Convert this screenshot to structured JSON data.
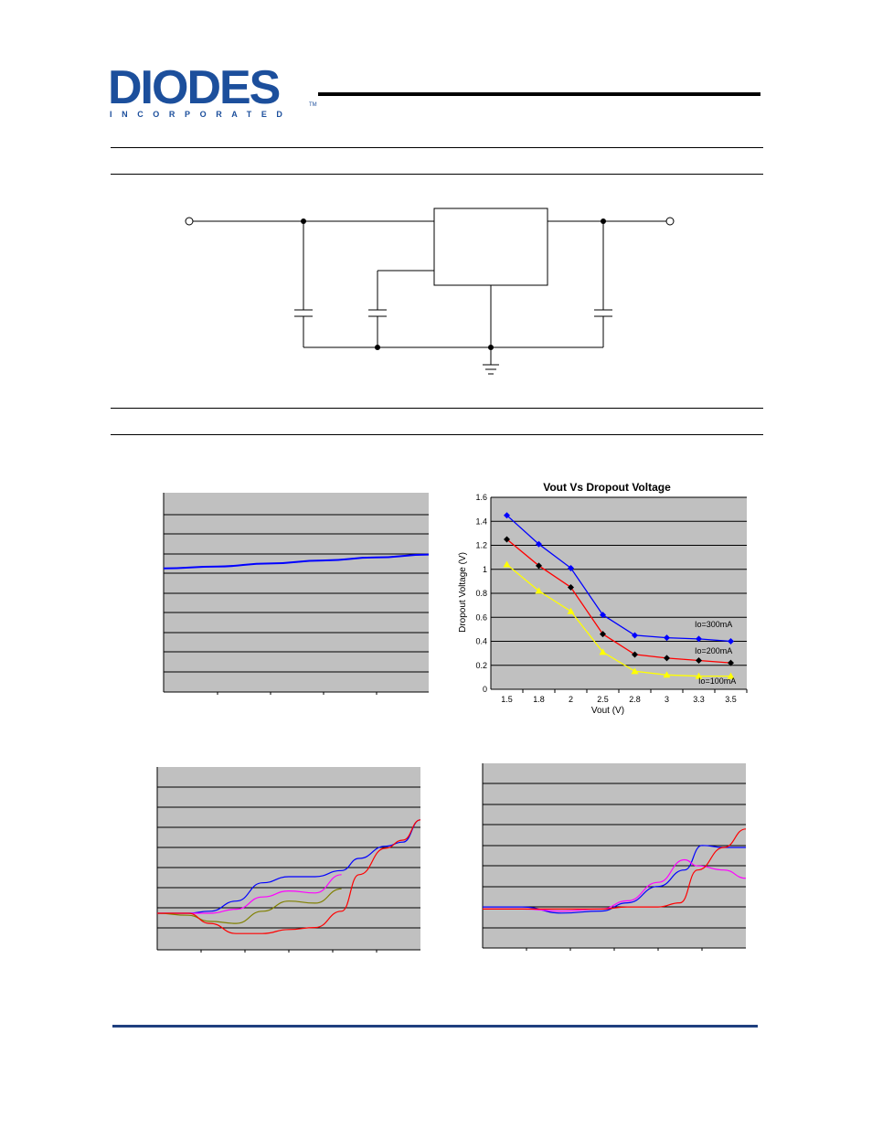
{
  "header": {
    "logo_text": "DIODES",
    "logo_subtext": "INCORPORATED",
    "logo_tm": "TM",
    "brand_color": "#1c4f9c"
  },
  "colors": {
    "plot_bg": "#c0c0c0",
    "footer_rule": "#1f3f7f",
    "series_blue": "#0000ff",
    "series_red": "#ff0000",
    "series_yellow": "#ffff00",
    "series_black": "#000000",
    "series_magenta": "#ff00ff",
    "series_olive": "#808000"
  },
  "chart_data": [
    {
      "type": "line",
      "title": "",
      "grid": true,
      "series": [
        {
          "color": "#0000ff",
          "x": [
            0,
            1,
            2,
            3,
            4,
            5
          ],
          "values": [
            0.62,
            0.63,
            0.645,
            0.66,
            0.675,
            0.69
          ]
        }
      ],
      "ylim": [
        0,
        1
      ],
      "xlim": [
        0,
        5
      ]
    },
    {
      "type": "line",
      "title": "Vout Vs Dropout Voltage",
      "xlabel": "Vout (V)",
      "ylabel": "Dropout Voltage (V)",
      "categories": [
        "1.5",
        "1.8",
        "2",
        "2.5",
        "2.8",
        "3",
        "3.3",
        "3.5"
      ],
      "yticks": [
        "0",
        "0.2",
        "0.4",
        "0.6",
        "0.8",
        "1",
        "1.2",
        "1.4",
        "1.6"
      ],
      "ylim": [
        0,
        1.6
      ],
      "grid": true,
      "series": [
        {
          "name": "Io=300mA",
          "color": "#0000ff",
          "marker": "diamond",
          "values": [
            1.45,
            1.21,
            1.01,
            0.62,
            0.45,
            0.43,
            0.42,
            0.4
          ]
        },
        {
          "name": "Io=200mA",
          "color": "#ff0000",
          "marker": "diamond",
          "values": [
            1.25,
            1.03,
            0.85,
            0.46,
            0.29,
            0.26,
            0.24,
            0.22
          ]
        },
        {
          "name": "Io=100mA",
          "color": "#ffff00",
          "marker": "triangle",
          "values": [
            1.04,
            0.82,
            0.65,
            0.31,
            0.15,
            0.12,
            0.11,
            0.11
          ]
        }
      ]
    },
    {
      "type": "line",
      "title": "",
      "grid": true,
      "ylim": [
        0,
        9
      ],
      "xlim": [
        0,
        6
      ],
      "series": [
        {
          "color": "#0000ff",
          "x": [
            0,
            0.7,
            1.2,
            1.8,
            2.4,
            3.0,
            3.6,
            4.2,
            4.6,
            5.2,
            5.6,
            6.0
          ],
          "values": [
            1.8,
            1.8,
            1.9,
            2.4,
            3.3,
            3.6,
            3.6,
            3.9,
            4.5,
            5.1,
            5.3,
            6.4
          ]
        },
        {
          "color": "#ff00ff",
          "x": [
            0,
            0.7,
            1.2,
            1.8,
            2.4,
            3.0,
            3.6,
            4.2
          ],
          "values": [
            1.8,
            1.8,
            1.8,
            2.0,
            2.6,
            2.9,
            2.8,
            3.7
          ]
        },
        {
          "color": "#808000",
          "x": [
            0,
            0.7,
            1.2,
            1.8,
            2.4,
            3.0,
            3.6,
            4.2
          ],
          "values": [
            1.8,
            1.7,
            1.4,
            1.3,
            1.9,
            2.4,
            2.3,
            3.0
          ]
        },
        {
          "color": "#ff0000",
          "x": [
            0,
            0.7,
            1.2,
            1.8,
            2.4,
            3.0,
            3.6,
            4.2,
            4.6,
            5.2,
            5.6,
            6.0
          ],
          "values": [
            1.8,
            1.8,
            1.3,
            0.8,
            0.8,
            1.0,
            1.1,
            1.9,
            3.7,
            5.0,
            5.4,
            6.4
          ]
        }
      ]
    },
    {
      "type": "line",
      "title": "",
      "grid": true,
      "ylim": [
        0,
        9
      ],
      "xlim": [
        0,
        6
      ],
      "series": [
        {
          "color": "#0000ff",
          "x": [
            0,
            0.9,
            1.8,
            2.7,
            3.3,
            4.0,
            4.6,
            5.0,
            5.5,
            6.0
          ],
          "values": [
            2.0,
            2.0,
            1.7,
            1.8,
            2.2,
            3.0,
            3.8,
            5.0,
            4.9,
            4.9
          ]
        },
        {
          "color": "#ff00ff",
          "x": [
            0,
            0.9,
            1.8,
            2.7,
            3.3,
            4.0,
            4.6,
            4.9,
            5.5,
            6.0
          ],
          "values": [
            1.9,
            1.9,
            1.8,
            1.9,
            2.3,
            3.2,
            4.3,
            4.0,
            3.8,
            3.4
          ]
        },
        {
          "color": "#ff0000",
          "x": [
            0,
            0.9,
            1.8,
            2.7,
            3.3,
            4.0,
            4.5,
            4.9,
            5.5,
            6.0
          ],
          "values": [
            1.9,
            1.9,
            1.9,
            1.9,
            2.0,
            2.0,
            2.2,
            3.8,
            4.9,
            5.8
          ]
        }
      ]
    }
  ]
}
